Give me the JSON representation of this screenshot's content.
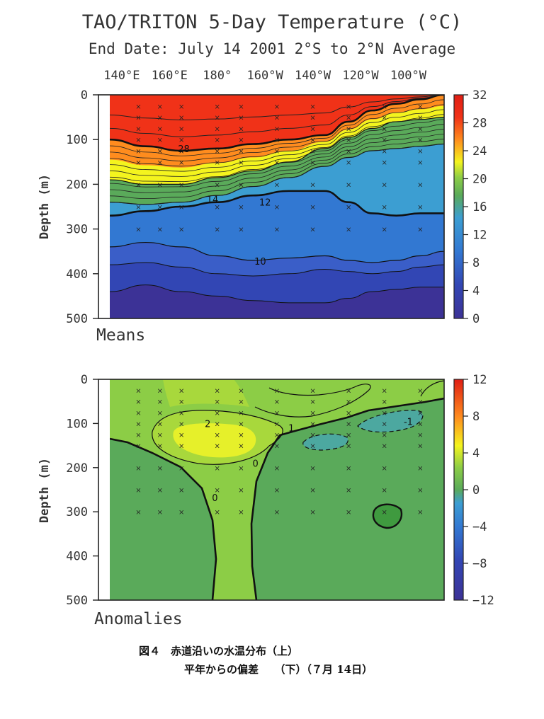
{
  "title": "TAO/TRITON 5-Day Temperature (°C)",
  "subtitle": "End Date: July 14 2001   2°S to 2°N Average",
  "caption": {
    "line1": "図４　赤道沿いの水温分布（上）",
    "line2": "平年からの偏差　　（下）（７月 14日）"
  },
  "colors": {
    "red": "#f03218",
    "orange": "#ff8c1e",
    "yellow": "#f4f41e",
    "green": "#5aaa5a",
    "light_green": "#8ccd46",
    "cyan": "#3c9ed2",
    "blue": "#3278d2",
    "deep_blue": "#3246b4",
    "purple": "#3c3296"
  },
  "chart_data": [
    {
      "type": "heatmap",
      "panel_label": "Means",
      "xlabel": "",
      "ylabel": "Depth (m)",
      "x_ticks": [
        "140°E",
        "160°E",
        "180°",
        "160°W",
        "140°W",
        "120°W",
        "100°W"
      ],
      "x_tick_lon": [
        140,
        160,
        180,
        200,
        220,
        240,
        260
      ],
      "xlim_lon": [
        135,
        275
      ],
      "y_ticks": [
        0,
        100,
        200,
        300,
        400,
        500
      ],
      "ylim": [
        0,
        500
      ],
      "colorbar": {
        "ticks": [
          32,
          28,
          24,
          20,
          16,
          12,
          8,
          4,
          0
        ],
        "range": [
          0,
          32
        ]
      },
      "isotherm_depth_m": {
        "lon": [
          135,
          150,
          165,
          180,
          195,
          210,
          225,
          235,
          245,
          255,
          265,
          275
        ],
        "t28": [
          100,
          115,
          125,
          120,
          110,
          100,
          90,
          60,
          35,
          20,
          10,
          0
        ],
        "t20": [
          190,
          200,
          200,
          185,
          170,
          150,
          120,
          95,
          75,
          60,
          55,
          50
        ],
        "t14": [
          240,
          245,
          240,
          225,
          205,
          185,
          160,
          140,
          125,
          120,
          115,
          110
        ],
        "t12": [
          270,
          260,
          250,
          240,
          225,
          215,
          215,
          240,
          265,
          270,
          265,
          265
        ],
        "t10": [
          340,
          330,
          340,
          360,
          370,
          365,
          360,
          370,
          375,
          370,
          360,
          350
        ],
        "t8": [
          380,
          375,
          385,
          400,
          405,
          400,
          390,
          395,
          400,
          395,
          385,
          380
        ],
        "t6": [
          440,
          425,
          440,
          450,
          460,
          465,
          465,
          455,
          440,
          435,
          430,
          430
        ]
      },
      "contour_labels": [
        {
          "text": "28",
          "lon": 166,
          "depth": 120
        },
        {
          "text": "14",
          "lon": 178,
          "depth": 233
        },
        {
          "text": "12",
          "lon": 200,
          "depth": 240
        },
        {
          "text": "10",
          "lon": 198,
          "depth": 372
        }
      ],
      "stations_lon": [
        147,
        156,
        165,
        180,
        190,
        205,
        220,
        235,
        250,
        265
      ],
      "stations_depth": [
        25,
        50,
        75,
        100,
        125,
        150,
        200,
        250,
        300
      ]
    },
    {
      "type": "heatmap",
      "panel_label": "Anomalies",
      "xlabel": "",
      "ylabel": "Depth (m)",
      "y_ticks": [
        0,
        100,
        200,
        300,
        400,
        500
      ],
      "ylim": [
        0,
        500
      ],
      "colorbar": {
        "ticks": [
          12,
          8,
          4,
          0,
          -4,
          -8,
          -12
        ],
        "range": [
          -12,
          12
        ]
      },
      "contour_labels": [
        {
          "text": "2",
          "lon": 176,
          "depth": 100
        },
        {
          "text": "1",
          "lon": 211,
          "depth": 110
        },
        {
          "text": "0",
          "lon": 196,
          "depth": 190
        },
        {
          "text": "0",
          "lon": 179,
          "depth": 268
        },
        {
          "text": "-1",
          "lon": 260,
          "depth": 95
        }
      ],
      "features": [
        {
          "name": "warm-core",
          "value": 4,
          "lon": 180,
          "depth": 130
        },
        {
          "name": "cold-patch",
          "value": -1,
          "lon": 250,
          "depth": 100
        },
        {
          "name": "cold-patch-2",
          "value": -1,
          "lon": 225,
          "depth": 140
        }
      ]
    }
  ]
}
